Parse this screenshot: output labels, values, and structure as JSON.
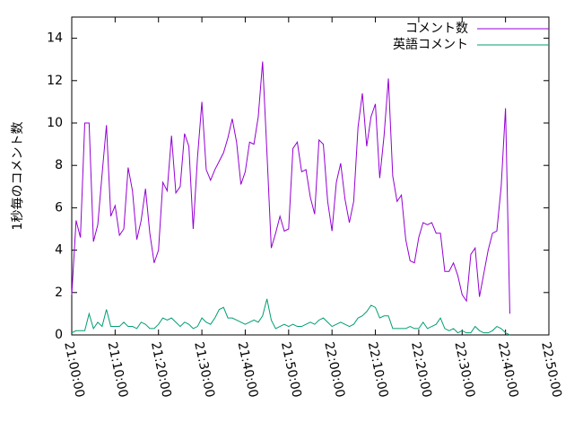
{
  "chart_data": {
    "type": "line",
    "ylabel": "1秒毎のコメント数",
    "x": [
      "21:00:00",
      "21:01:00",
      "21:02:00",
      "21:03:00",
      "21:04:00",
      "21:05:00",
      "21:06:00",
      "21:07:00",
      "21:08:00",
      "21:09:00",
      "21:10:00",
      "21:11:00",
      "21:12:00",
      "21:13:00",
      "21:14:00",
      "21:15:00",
      "21:16:00",
      "21:17:00",
      "21:18:00",
      "21:19:00",
      "21:20:00",
      "21:21:00",
      "21:22:00",
      "21:23:00",
      "21:24:00",
      "21:25:00",
      "21:26:00",
      "21:27:00",
      "21:28:00",
      "21:29:00",
      "21:30:00",
      "21:31:00",
      "21:32:00",
      "21:33:00",
      "21:34:00",
      "21:35:00",
      "21:36:00",
      "21:37:00",
      "21:38:00",
      "21:39:00",
      "21:40:00",
      "21:41:00",
      "21:42:00",
      "21:43:00",
      "21:44:00",
      "21:45:00",
      "21:46:00",
      "21:47:00",
      "21:48:00",
      "21:49:00",
      "21:50:00",
      "21:51:00",
      "21:52:00",
      "21:53:00",
      "21:54:00",
      "21:55:00",
      "21:56:00",
      "21:57:00",
      "21:58:00",
      "21:59:00",
      "22:00:00",
      "22:01:00",
      "22:02:00",
      "22:03:00",
      "22:04:00",
      "22:05:00",
      "22:06:00",
      "22:07:00",
      "22:08:00",
      "22:09:00",
      "22:10:00",
      "22:11:00",
      "22:12:00",
      "22:13:00",
      "22:14:00",
      "22:15:00",
      "22:16:00",
      "22:17:00",
      "22:18:00",
      "22:19:00",
      "22:20:00",
      "22:21:00",
      "22:22:00",
      "22:23:00",
      "22:24:00",
      "22:25:00",
      "22:26:00",
      "22:27:00",
      "22:28:00",
      "22:29:00",
      "22:30:00",
      "22:31:00",
      "22:32:00",
      "22:33:00",
      "22:34:00",
      "22:35:00",
      "22:36:00",
      "22:37:00",
      "22:38:00",
      "22:39:00",
      "22:40:00",
      "22:41:00"
    ],
    "series": [
      {
        "name": "コメント数",
        "color": "#9400d3",
        "values": [
          1.9,
          5.4,
          4.6,
          10,
          10,
          4.4,
          5.2,
          7.6,
          9.9,
          5.6,
          6.1,
          4.7,
          5.0,
          7.9,
          6.8,
          4.5,
          5.4,
          6.9,
          4.8,
          3.4,
          4.0,
          7.2,
          6.8,
          9.4,
          6.7,
          7.0,
          9.5,
          8.9,
          5.0,
          8.4,
          11.0,
          7.8,
          7.3,
          7.8,
          8.2,
          8.6,
          9.3,
          10.2,
          9.1,
          7.1,
          7.7,
          9.1,
          9.0,
          10.3,
          12.9,
          8.6,
          4.1,
          4.8,
          5.6,
          4.9,
          5.0,
          8.8,
          9.1,
          7.7,
          7.8,
          6.5,
          5.7,
          9.2,
          9.0,
          6.3,
          4.9,
          7.2,
          8.1,
          6.4,
          5.3,
          6.3,
          9.8,
          11.4,
          8.9,
          10.3,
          10.9,
          7.4,
          9.4,
          12.1,
          7.5,
          6.3,
          6.6,
          4.5,
          3.5,
          3.4,
          4.6,
          5.3,
          5.2,
          5.3,
          4.8,
          4.8,
          3.0,
          3.0,
          3.4,
          2.8,
          1.9,
          1.6,
          3.8,
          4.1,
          1.8,
          2.9,
          4.0,
          4.8,
          4.9,
          7.0,
          10.7,
          1.0
        ]
      },
      {
        "name": "英語コメント",
        "color": "#009e73",
        "values": [
          0.1,
          0.2,
          0.2,
          0.2,
          1.0,
          0.3,
          0.6,
          0.4,
          1.2,
          0.4,
          0.4,
          0.4,
          0.6,
          0.4,
          0.4,
          0.3,
          0.6,
          0.5,
          0.3,
          0.3,
          0.5,
          0.8,
          0.7,
          0.8,
          0.6,
          0.4,
          0.6,
          0.5,
          0.3,
          0.4,
          0.8,
          0.6,
          0.5,
          0.8,
          1.2,
          1.3,
          0.8,
          0.8,
          0.7,
          0.6,
          0.5,
          0.6,
          0.7,
          0.6,
          0.9,
          1.7,
          0.7,
          0.3,
          0.4,
          0.5,
          0.4,
          0.5,
          0.4,
          0.4,
          0.5,
          0.6,
          0.5,
          0.7,
          0.8,
          0.6,
          0.4,
          0.5,
          0.6,
          0.5,
          0.4,
          0.5,
          0.8,
          0.9,
          1.1,
          1.4,
          1.3,
          0.8,
          0.9,
          0.9,
          0.3,
          0.3,
          0.3,
          0.3,
          0.4,
          0.3,
          0.3,
          0.6,
          0.3,
          0.4,
          0.5,
          0.8,
          0.3,
          0.2,
          0.3,
          0.1,
          0.2,
          0.1,
          0.1,
          0.4,
          0.2,
          0.1,
          0.1,
          0.2,
          0.4,
          0.3,
          0.1,
          0.0
        ]
      }
    ],
    "xlim": [
      "21:00:00",
      "22:50:00"
    ],
    "xticks": [
      "21:00:00",
      "21:10:00",
      "21:20:00",
      "21:30:00",
      "21:40:00",
      "21:50:00",
      "22:00:00",
      "22:10:00",
      "22:20:00",
      "22:30:00",
      "22:40:00",
      "22:50:00"
    ],
    "ylim": [
      0,
      15
    ],
    "yticks": [
      0,
      2,
      4,
      6,
      8,
      10,
      12,
      14
    ],
    "legend": "upper right"
  }
}
